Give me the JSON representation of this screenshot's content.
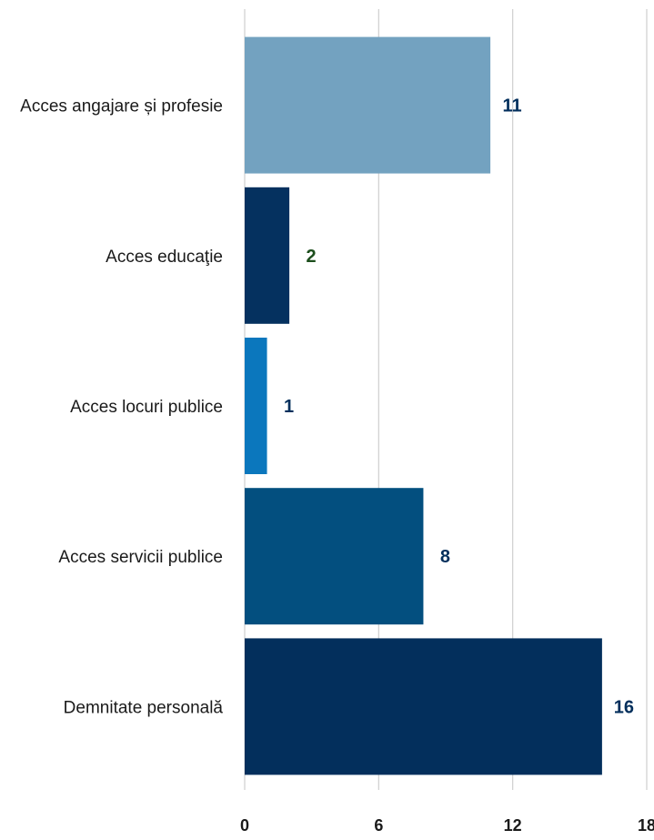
{
  "chart_data": {
    "type": "bar",
    "orientation": "horizontal",
    "categories": [
      "Acces angajare și profesie",
      "Acces educaţie",
      "Acces locuri publice",
      "Acces servicii publice",
      "Demnitate personală"
    ],
    "values": [
      11,
      2,
      1,
      8,
      16
    ],
    "bar_colors": [
      "#73a2c0",
      "#05315f",
      "#0b77bd",
      "#034f7f",
      "#032f5c"
    ],
    "value_label_colors": [
      "#032f5c",
      "#1c4e1c",
      "#032f5c",
      "#032f5c",
      "#032f5c"
    ],
    "xlim": [
      0,
      18
    ],
    "xticks": [
      0,
      6,
      12,
      18
    ],
    "xtick_labels": [
      "0",
      "6",
      "12",
      "18"
    ],
    "grid": true,
    "legend": "none",
    "title": "",
    "xlabel": "",
    "ylabel": ""
  }
}
